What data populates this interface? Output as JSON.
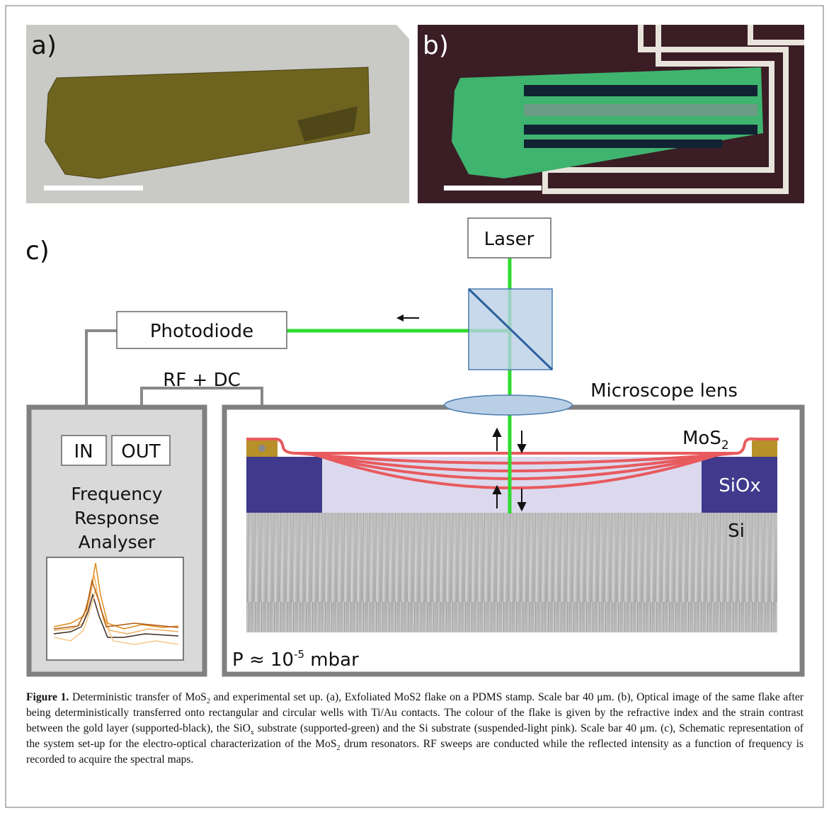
{
  "panels": {
    "a": "a)",
    "b": "b)",
    "c": "c)"
  },
  "diagram": {
    "laser": "Laser",
    "photodiode": "Photodiode",
    "rf_dc": "RF + DC",
    "lens": "Microscope lens",
    "in": "IN",
    "out": "OUT",
    "analyser": [
      "Frequency",
      "Response",
      "Analyser"
    ],
    "mos2": {
      "base": "MoS",
      "sub": "2"
    },
    "siox": "SiOx",
    "si": "Si",
    "pressure": {
      "base": "P ≈ 10",
      "sup": "-5",
      "unit": " mbar"
    }
  },
  "caption": {
    "runs": [
      {
        "text": "Figure 1.",
        "bold": true
      },
      {
        "text": " Deterministic transfer of MoS"
      },
      {
        "text": "2",
        "sub": true
      },
      {
        "text": " and experimental set up. (a), Exfoliated MoS2 flake on a PDMS stamp. Scale bar 40 μm. (b), Optical image of the same flake after being deterministically transferred onto rectangular and circular wells with Ti/Au contacts. The colour of the flake is given by the refractive index and the strain contrast between the gold layer (supported-black), the SiO"
      },
      {
        "text": "x",
        "sub": true
      },
      {
        "text": " substrate (supported-green) and the Si substrate (suspended-light pink). Scale bar 40 μm. (c), Schematic representation of the system set-up for the electro-optical characterization of the MoS"
      },
      {
        "text": "2",
        "sub": true
      },
      {
        "text": " drum resonators. RF sweeps are conducted while the reflected intensity as a function of frequency is recorded to acquire the spectral maps."
      }
    ]
  }
}
